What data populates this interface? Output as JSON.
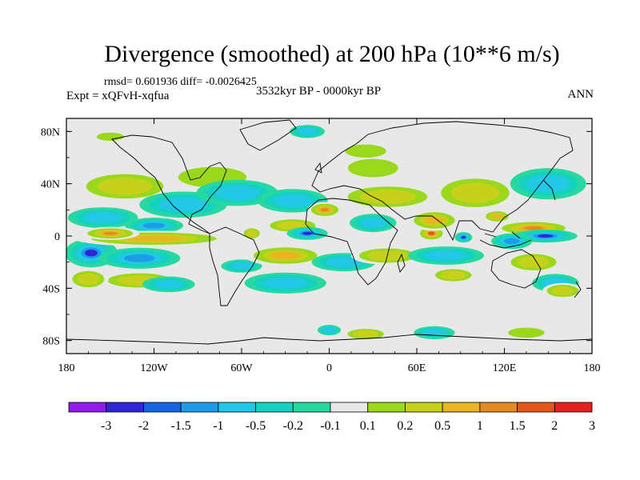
{
  "header": {
    "title": "Divergence (smoothed) at 200 hPa (10**6 m/s)",
    "stats": "rmsd= 0.601936 diff= -0.0026425",
    "experiment": "Expt = xQFvH-xqfua",
    "period": "3532kyr BP - 0000kyr BP",
    "season": "ANN"
  },
  "chart_data": {
    "type": "heatmap",
    "title": "Divergence (smoothed) at 200 hPa (10**6 m/s)",
    "projection": "cylindrical equidistant, global map with coastlines",
    "xlim": [
      -180,
      180
    ],
    "ylim": [
      -90,
      90
    ],
    "x_ticks": [
      {
        "value": -180,
        "label": "180"
      },
      {
        "value": -120,
        "label": "120W"
      },
      {
        "value": -60,
        "label": "60W"
      },
      {
        "value": 0,
        "label": "0"
      },
      {
        "value": 60,
        "label": "60E"
      },
      {
        "value": 120,
        "label": "120E"
      },
      {
        "value": 180,
        "label": "180"
      }
    ],
    "y_ticks": [
      {
        "value": 80,
        "label": "80N"
      },
      {
        "value": 40,
        "label": "40N"
      },
      {
        "value": 0,
        "label": "0"
      },
      {
        "value": -40,
        "label": "40S"
      },
      {
        "value": -80,
        "label": "80S"
      }
    ],
    "levels": [
      "-3",
      "-2",
      "-1.5",
      "-1",
      "-0.5",
      "-0.2",
      "-0.1",
      "0.1",
      "0.2",
      "0.5",
      "1",
      "1.5",
      "2",
      "3"
    ],
    "colors": [
      "#8f1ce8",
      "#2f24d8",
      "#1463e0",
      "#1d9ce8",
      "#23c8e6",
      "#14d2bf",
      "#27d9a0",
      "#e8e8e8",
      "#9bd81b",
      "#c7d11b",
      "#e8b622",
      "#e48a20",
      "#e5561d",
      "#e2211f"
    ],
    "blobs": [
      {
        "lon": -163,
        "lat": -13,
        "rx": 18,
        "ry": 11,
        "value": -2.5
      },
      {
        "lon": -130,
        "lat": -17,
        "rx": 28,
        "ry": 8,
        "value": -1.2
      },
      {
        "lon": -155,
        "lat": 14,
        "rx": 24,
        "ry": 8,
        "value": -0.7
      },
      {
        "lon": -120,
        "lat": 8,
        "rx": 20,
        "ry": 6,
        "value": -1.2
      },
      {
        "lon": -120,
        "lat": -2,
        "rx": 55,
        "ry": 6,
        "value": 1.2
      },
      {
        "lon": -150,
        "lat": 2,
        "rx": 20,
        "ry": 5,
        "value": 1.6
      },
      {
        "lon": -130,
        "lat": -34,
        "rx": 28,
        "ry": 7,
        "value": 0.8
      },
      {
        "lon": -165,
        "lat": -33,
        "rx": 14,
        "ry": 8,
        "value": 0.6
      },
      {
        "lon": -110,
        "lat": -37,
        "rx": 18,
        "ry": 6,
        "value": -0.7
      },
      {
        "lon": -140,
        "lat": 38,
        "rx": 34,
        "ry": 12,
        "value": 0.6
      },
      {
        "lon": -100,
        "lat": 24,
        "rx": 30,
        "ry": 10,
        "value": -0.7
      },
      {
        "lon": -80,
        "lat": 45,
        "rx": 30,
        "ry": 10,
        "value": 0.5
      },
      {
        "lon": -63,
        "lat": 33,
        "rx": 28,
        "ry": 10,
        "value": -0.6
      },
      {
        "lon": -53,
        "lat": 2,
        "rx": 7,
        "ry": 5,
        "value": 1.0
      },
      {
        "lon": -60,
        "lat": -23,
        "rx": 14,
        "ry": 5,
        "value": -0.7
      },
      {
        "lon": -30,
        "lat": -15,
        "rx": 28,
        "ry": 8,
        "value": 1.2
      },
      {
        "lon": -25,
        "lat": 8,
        "rx": 20,
        "ry": 6,
        "value": 0.8
      },
      {
        "lon": -15,
        "lat": 2,
        "rx": 14,
        "ry": 5,
        "value": -2.3
      },
      {
        "lon": -25,
        "lat": 27,
        "rx": 24,
        "ry": 9,
        "value": -0.7
      },
      {
        "lon": -3,
        "lat": 20,
        "rx": 12,
        "ry": 6,
        "value": 1.6
      },
      {
        "lon": -30,
        "lat": -36,
        "rx": 28,
        "ry": 8,
        "value": -0.8
      },
      {
        "lon": 10,
        "lat": -20,
        "rx": 22,
        "ry": 7,
        "value": -0.6
      },
      {
        "lon": 30,
        "lat": 10,
        "rx": 16,
        "ry": 7,
        "value": -0.8
      },
      {
        "lon": 40,
        "lat": -15,
        "rx": 25,
        "ry": 7,
        "value": 0.8
      },
      {
        "lon": 40,
        "lat": 30,
        "rx": 35,
        "ry": 10,
        "value": 0.6
      },
      {
        "lon": 30,
        "lat": 52,
        "rx": 22,
        "ry": 9,
        "value": 0.5
      },
      {
        "lon": 25,
        "lat": 65,
        "rx": 14,
        "ry": 5,
        "value": 0.3
      },
      {
        "lon": 70,
        "lat": 2,
        "rx": 10,
        "ry": 6,
        "value": 2.6
      },
      {
        "lon": 72,
        "lat": 12,
        "rx": 18,
        "ry": 8,
        "value": 1.1
      },
      {
        "lon": 92,
        "lat": -1,
        "rx": 6,
        "ry": 4,
        "value": -2.5
      },
      {
        "lon": 80,
        "lat": -15,
        "rx": 26,
        "ry": 7,
        "value": -0.7
      },
      {
        "lon": 85,
        "lat": -30,
        "rx": 16,
        "ry": 6,
        "value": 0.7
      },
      {
        "lon": 100,
        "lat": 33,
        "rx": 30,
        "ry": 14,
        "value": 0.7
      },
      {
        "lon": 115,
        "lat": 15,
        "rx": 10,
        "ry": 5,
        "value": 1.3
      },
      {
        "lon": 140,
        "lat": 6,
        "rx": 28,
        "ry": 6,
        "value": 1.6
      },
      {
        "lon": 148,
        "lat": 0,
        "rx": 22,
        "ry": 5,
        "value": -2.7
      },
      {
        "lon": 125,
        "lat": -4,
        "rx": 14,
        "ry": 6,
        "value": -1.2
      },
      {
        "lon": 150,
        "lat": 40,
        "rx": 26,
        "ry": 12,
        "value": -0.6
      },
      {
        "lon": 140,
        "lat": -20,
        "rx": 20,
        "ry": 8,
        "value": 0.6
      },
      {
        "lon": 155,
        "lat": -36,
        "rx": 16,
        "ry": 7,
        "value": -0.6
      },
      {
        "lon": 160,
        "lat": -42,
        "rx": 14,
        "ry": 6,
        "value": 0.6
      },
      {
        "lon": 25,
        "lat": -75,
        "rx": 16,
        "ry": 5,
        "value": 0.9
      },
      {
        "lon": 135,
        "lat": -74,
        "rx": 16,
        "ry": 5,
        "value": 0.5
      },
      {
        "lon": 72,
        "lat": -74,
        "rx": 14,
        "ry": 5,
        "value": -0.6
      },
      {
        "lon": 0,
        "lat": -72,
        "rx": 8,
        "ry": 4,
        "value": -0.6
      },
      {
        "lon": -150,
        "lat": 76,
        "rx": 12,
        "ry": 4,
        "value": 0.5
      },
      {
        "lon": -15,
        "lat": 80,
        "rx": 12,
        "ry": 5,
        "value": -0.6
      }
    ]
  }
}
